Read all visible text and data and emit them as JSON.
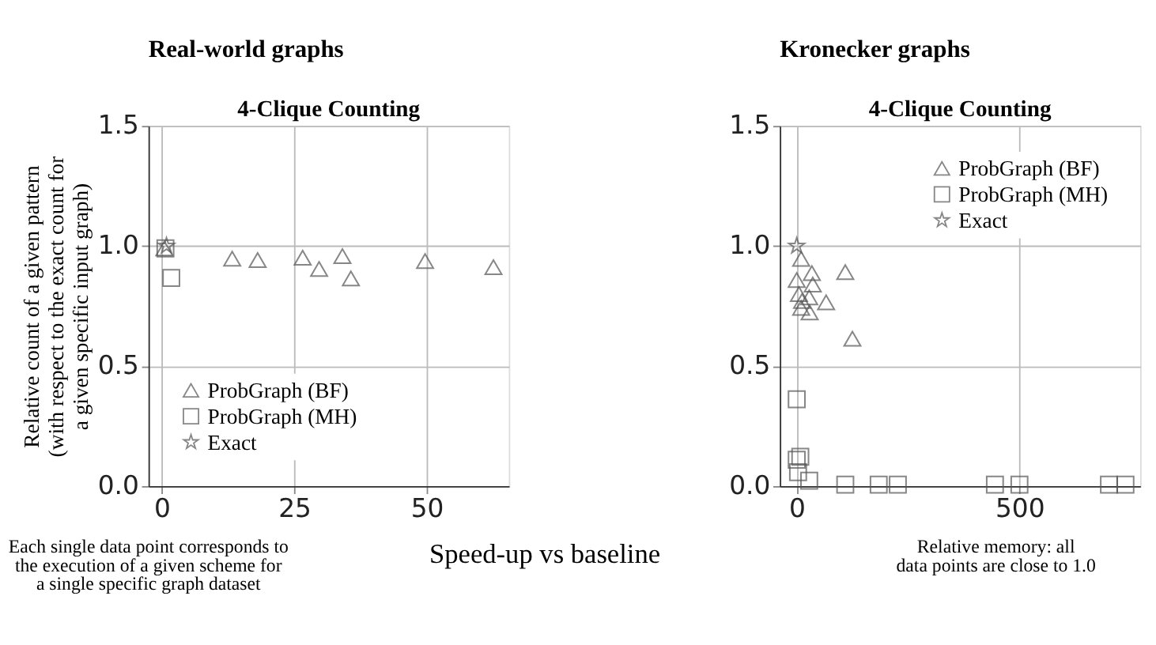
{
  "chart_data": [
    {
      "type": "scatter",
      "title": "Real-world graphs",
      "subtitle": "4-Clique Counting",
      "ylabel": "Relative count of a given pattern\n(with respect to the exact count for\na given specific input graph)",
      "xlabel": "Speed-up vs baseline",
      "xlim": [
        -2.5,
        65.5
      ],
      "xticks": [
        0,
        25,
        50
      ],
      "ylim": [
        0,
        1.5
      ],
      "yticks": [
        {
          "value": 0,
          "label": "0.0"
        },
        {
          "value": 0.5,
          "label": "0.5"
        },
        {
          "value": 1,
          "label": "1.0"
        },
        {
          "value": 1.5,
          "label": "1.5"
        }
      ],
      "grid": true,
      "legend": "bottom left",
      "series": [
        {
          "name": "ProbGraph (BF)",
          "color": "#555555",
          "marker": "triangle",
          "x": [
            0.5,
            13.3,
            18.1,
            26.6,
            29.7,
            34.1,
            35.7,
            49.7,
            62.6
          ],
          "values": [
            0.99,
            0.947,
            0.941,
            0.951,
            0.904,
            0.958,
            0.865,
            0.937,
            0.912
          ]
        },
        {
          "name": "ProbGraph (MH)",
          "color": "#555555",
          "marker": "square",
          "x": [
            0.7,
            1.8
          ],
          "values": [
            0.99,
            0.867
          ]
        },
        {
          "name": "Exact",
          "color": "#555555",
          "marker": "star",
          "x": [
            0.9
          ],
          "values": [
            1.0
          ]
        }
      ],
      "annotations": [
        "Each single data point corresponds to\nthe execution of a given scheme for\na single specific graph dataset"
      ]
    },
    {
      "type": "scatter",
      "title": "Kronecker graphs",
      "subtitle": "4-Clique Counting",
      "xlim": [
        -38,
        771
      ],
      "xticks": [
        0,
        500
      ],
      "ylim": [
        0,
        1.5
      ],
      "yticks": [
        {
          "value": 0,
          "label": "0.0"
        },
        {
          "value": 0.5,
          "label": "0.5"
        },
        {
          "value": 1,
          "label": "1.0"
        },
        {
          "value": 1.5,
          "label": "1.5"
        }
      ],
      "grid": true,
      "legend": "top right",
      "series": [
        {
          "name": "ProbGraph (BF)",
          "color": "#555555",
          "marker": "triangle",
          "x": [
            10,
            0,
            5,
            12,
            10,
            34,
            36,
            28,
            29,
            66,
            109,
            125
          ],
          "values": [
            0.946,
            0.858,
            0.8,
            0.771,
            0.742,
            0.887,
            0.839,
            0.786,
            0.723,
            0.765,
            0.891,
            0.614
          ]
        },
        {
          "name": "ProbGraph (MH)",
          "color": "#555555",
          "marker": "square",
          "x": [
            0,
            8,
            0,
            3,
            28,
            109,
            184,
            227,
            445,
            500,
            701,
            738
          ],
          "values": [
            0.362,
            0.122,
            0.11,
            0.058,
            0.023,
            0.006,
            0.006,
            0.006,
            0.006,
            0.006,
            0.006,
            0.006
          ]
        },
        {
          "name": "Exact",
          "color": "#555555",
          "marker": "star",
          "x": [
            0
          ],
          "values": [
            1.0
          ]
        }
      ],
      "annotations": [
        "Relative memory: all\ndata points are close to 1.0"
      ]
    }
  ]
}
